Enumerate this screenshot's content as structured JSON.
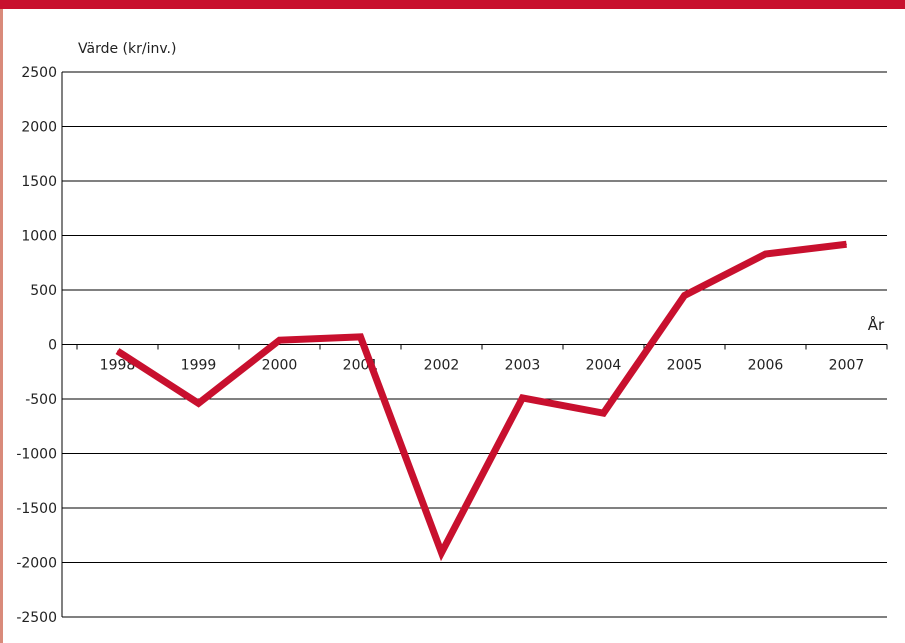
{
  "colors": {
    "accent": "#c8102e",
    "line": "#c8102e",
    "grid": "#000000",
    "text": "#222222"
  },
  "chart_data": {
    "type": "line",
    "title": "",
    "ylabel": "Värde (kr/inv.)",
    "xlabel": "År",
    "categories": [
      "1998",
      "1999",
      "2000",
      "2001",
      "2002",
      "2003",
      "2004",
      "2005",
      "2006",
      "2007"
    ],
    "yticks": [
      "2500",
      "2000",
      "1500",
      "1000",
      "500",
      "0",
      "-500",
      "-1000",
      "-1500",
      "-2000",
      "-2500"
    ],
    "ylim": [
      -2500,
      2500
    ],
    "grid": true,
    "series": [
      {
        "values": [
          -60,
          -540,
          40,
          70,
          -1910,
          -490,
          -630,
          450,
          830,
          920
        ]
      }
    ]
  }
}
